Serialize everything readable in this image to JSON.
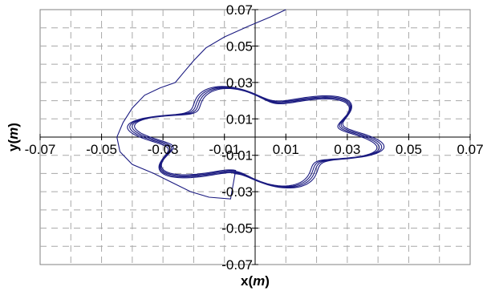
{
  "chart_data": {
    "type": "line",
    "title": "",
    "xlabel": "x(m)",
    "ylabel": "y(m)",
    "xlabel_parts": [
      "x(",
      "m",
      ")"
    ],
    "ylabel_parts": [
      "y(",
      "m",
      ")"
    ],
    "xlim": [
      -0.07,
      0.07
    ],
    "ylim": [
      -0.07,
      0.07
    ],
    "x_ticks": [
      -0.07,
      -0.05,
      -0.03,
      -0.01,
      0.01,
      0.03,
      0.05,
      0.07
    ],
    "y_ticks": [
      -0.07,
      -0.05,
      -0.03,
      -0.01,
      0.01,
      0.03,
      0.05,
      0.07
    ],
    "x_tick_labels": [
      "-0.07",
      "-0.05",
      "-0.03",
      "-0.01",
      "0.01",
      "0.03",
      "0.05",
      "0.07"
    ],
    "y_tick_labels": [
      "-0.07",
      "-0.05",
      "-0.03",
      "-0.01",
      "0.01",
      "0.03",
      "0.05",
      "0.07"
    ],
    "grid": true,
    "grid_style": "dashed",
    "line_color": "#1a1a80",
    "legend": "none",
    "series": [
      {
        "approach": [
          [
            0.01,
            0.07
          ],
          [
            0.005,
            0.066
          ],
          [
            -0.002,
            0.061
          ],
          [
            -0.01,
            0.055
          ],
          [
            -0.016,
            0.049
          ],
          [
            -0.02,
            0.042
          ],
          [
            -0.023,
            0.036
          ],
          [
            -0.026,
            0.03
          ],
          [
            -0.031,
            0.027
          ],
          [
            -0.036,
            0.023
          ],
          [
            -0.04,
            0.016
          ],
          [
            -0.043,
            0.008
          ],
          [
            -0.045,
            0.0
          ],
          [
            -0.044,
            -0.008
          ],
          [
            -0.04,
            -0.015
          ],
          [
            -0.033,
            -0.02
          ],
          [
            -0.027,
            -0.025
          ],
          [
            -0.021,
            -0.03
          ],
          [
            -0.015,
            -0.033
          ],
          [
            -0.008,
            -0.034
          ]
        ],
        "orbit_model": {
          "r0": 0.0295,
          "amplitude": 0.0055,
          "lobes": 6,
          "phase_deg": -90,
          "loops": 4,
          "radius_step": 0.0006,
          "phase_step_deg": 4
        }
      }
    ]
  }
}
